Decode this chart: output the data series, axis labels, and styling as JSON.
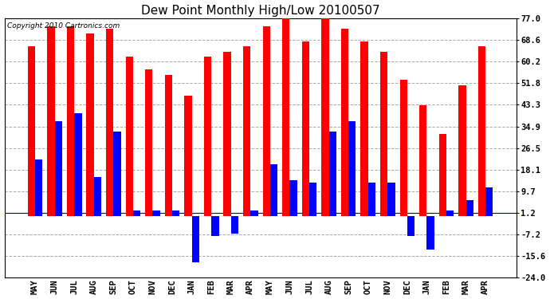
{
  "title": "Dew Point Monthly High/Low 20100507",
  "copyright": "Copyright 2010 Cartronics.com",
  "months": [
    "MAY",
    "JUN",
    "JUL",
    "AUG",
    "SEP",
    "OCT",
    "NOV",
    "DEC",
    "JAN",
    "FEB",
    "MAR",
    "APR",
    "MAY",
    "JUN",
    "JUL",
    "AUG",
    "SEP",
    "OCT",
    "NOV",
    "DEC",
    "JAN",
    "FEB",
    "MAR",
    "APR"
  ],
  "highs": [
    66,
    74,
    74,
    71,
    73,
    62,
    57,
    55,
    47,
    62,
    64,
    66,
    74,
    77,
    68,
    77,
    73,
    68,
    64,
    53,
    43,
    32,
    51,
    66
  ],
  "lows": [
    22,
    37,
    40,
    15,
    33,
    2,
    2,
    2,
    -18,
    -8,
    -7,
    2,
    20,
    14,
    13,
    33,
    37,
    13,
    13,
    -8,
    -13,
    2,
    6,
    11
  ],
  "yticks": [
    77.0,
    68.6,
    60.2,
    51.8,
    43.3,
    34.9,
    26.5,
    18.1,
    9.7,
    1.2,
    -7.2,
    -15.6,
    -24.0
  ],
  "ylim": [
    -24.0,
    77.0
  ],
  "bar_width": 0.38,
  "high_color": "#ff0000",
  "low_color": "#0000ff",
  "bg_color": "#ffffff",
  "grid_color": "#aaaaaa",
  "title_fontsize": 11,
  "tick_fontsize": 7.5,
  "copyright_fontsize": 6.5,
  "figwidth": 6.9,
  "figheight": 3.75,
  "dpi": 100
}
